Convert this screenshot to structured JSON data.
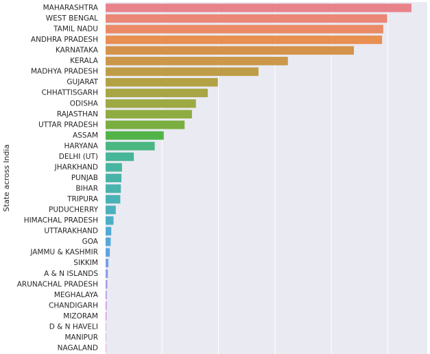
{
  "chart_data": {
    "type": "bar",
    "orientation": "horizontal",
    "title": "",
    "xlabel": "",
    "ylabel": "State across India",
    "xlim": [
      0,
      5700
    ],
    "grid": true,
    "legend": "none",
    "background": "#eaeaf2",
    "categories": [
      "MAHARASHTRA",
      "WEST BENGAL",
      "TAMIL NADU",
      "ANDHRA PRADESH",
      "KARNATAKA",
      "KERALA",
      "MADHYA PRADESH",
      "GUJARAT",
      "CHHATTISGARH",
      "ODISHA",
      "RAJASTHAN",
      "UTTAR PRADESH",
      "ASSAM",
      "HARYANA",
      "DELHI (UT)",
      "JHARKHAND",
      "PUNJAB",
      "BIHAR",
      "TRIPURA",
      "PUDUCHERRY",
      "HIMACHAL PRADESH",
      "UTTARAKHAND",
      "GOA",
      "JAMMU & KASHMIR",
      "SIKKIM",
      "A & N ISLANDS",
      "ARUNACHAL PRADESH",
      "MEGHALAYA",
      "CHANDIGARH",
      "MIZORAM",
      "D & N HAVELI",
      "MANIPUR",
      "NAGALAND"
    ],
    "values": [
      5420,
      4990,
      4920,
      4900,
      4400,
      3230,
      2710,
      1990,
      1810,
      1600,
      1530,
      1400,
      1030,
      870,
      500,
      290,
      280,
      270,
      260,
      180,
      140,
      100,
      90,
      75,
      50,
      40,
      30,
      20,
      18,
      15,
      8,
      5,
      3
    ],
    "colors": [
      "#e8838b",
      "#ea8777",
      "#ea8a66",
      "#e88f52",
      "#d4924a",
      "#cb984a",
      "#bf9d48",
      "#b3a244",
      "#a7a544",
      "#9da942",
      "#8fac42",
      "#7aae41",
      "#52b448",
      "#4ab682",
      "#47b597",
      "#47b59f",
      "#48b4a7",
      "#49b3ad",
      "#4ab2b5",
      "#4bb0be",
      "#4daec6",
      "#50abd0",
      "#56a8d9",
      "#5fa3e1",
      "#75a0e8",
      "#8c9ce8",
      "#a497e8",
      "#b790e6",
      "#c78be4",
      "#d486e0",
      "#de84d6",
      "#e584c7",
      "#e987b6"
    ]
  }
}
